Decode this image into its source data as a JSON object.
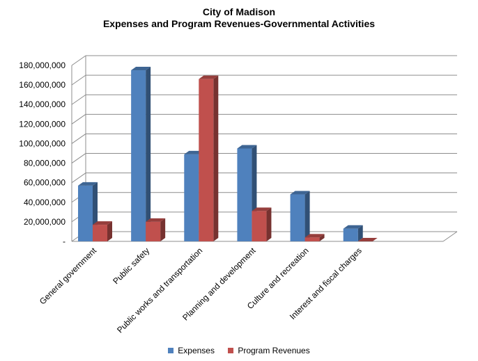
{
  "chart_data": {
    "type": "bar",
    "title": "City of Madison",
    "subtitle": "Expenses and Program Revenues-Governmental Activities",
    "categories": [
      "General government",
      "Public safety",
      "Public works and transportation",
      "Planning and development",
      "Culture and recreation",
      "Interest and fiscal charges"
    ],
    "series": [
      {
        "name": "Expenses",
        "color": "#4f81bd",
        "values": [
          57000000,
          175000000,
          89000000,
          95000000,
          48000000,
          13000000
        ]
      },
      {
        "name": "Program Revenues",
        "color": "#c0504d",
        "values": [
          17000000,
          20000000,
          166000000,
          31000000,
          4000000,
          0
        ]
      }
    ],
    "y_ticks": [
      "-",
      "20,000,000",
      "40,000,000",
      "60,000,000",
      "80,000,000",
      "100,000,000",
      "120,000,000",
      "140,000,000",
      "160,000,000",
      "180,000,000"
    ],
    "ylim": [
      0,
      180000000
    ],
    "grid": true,
    "legend": "bottom"
  }
}
